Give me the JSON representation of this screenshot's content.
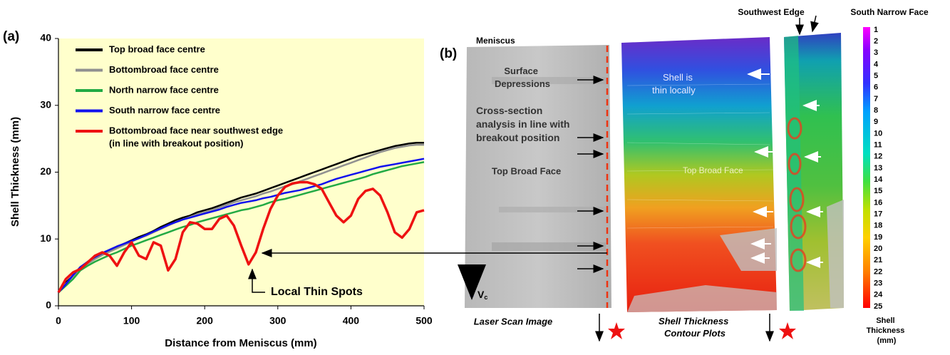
{
  "chart_data": {
    "type": "line",
    "panel_label": "(a)",
    "x_label": "Distance from Meniscus (mm)",
    "y_label": "Shell Thickness (mm)",
    "x": [
      0,
      10,
      20,
      30,
      40,
      50,
      60,
      70,
      80,
      90,
      100,
      110,
      120,
      130,
      140,
      150,
      160,
      170,
      180,
      190,
      200,
      210,
      220,
      230,
      240,
      250,
      260,
      270,
      280,
      290,
      300,
      310,
      320,
      330,
      340,
      350,
      360,
      370,
      380,
      390,
      400,
      410,
      420,
      430,
      440,
      450,
      460,
      470,
      480,
      490,
      500
    ],
    "series": [
      {
        "name": "Top broad face centre",
        "color": "#000000",
        "values": [
          2,
          3.5,
          4.5,
          5.8,
          6.5,
          7.2,
          7.8,
          8.3,
          8.8,
          9.3,
          9.8,
          10.3,
          10.7,
          11.2,
          11.8,
          12.3,
          12.8,
          13.2,
          13.5,
          14,
          14.3,
          14.6,
          15,
          15.4,
          15.8,
          16.2,
          16.5,
          16.8,
          17.2,
          17.6,
          18,
          18.4,
          18.8,
          19.2,
          19.6,
          20,
          20.4,
          20.8,
          21.2,
          21.6,
          22,
          22.4,
          22.7,
          23,
          23.3,
          23.6,
          23.9,
          24.1,
          24.3,
          24.4,
          24.4
        ]
      },
      {
        "name": "Bottombroad face centre",
        "color": "#909090",
        "values": [
          2,
          3.3,
          4.4,
          5.6,
          6.3,
          7,
          7.6,
          8.1,
          8.6,
          9.1,
          9.6,
          10.1,
          10.5,
          11,
          11.5,
          12,
          12.5,
          12.9,
          13.3,
          13.7,
          14,
          14.3,
          14.7,
          15.1,
          15.5,
          15.8,
          16.1,
          16.4,
          16.8,
          17.1,
          17.5,
          17.9,
          18.2,
          18.6,
          19,
          19.4,
          19.8,
          20.2,
          20.6,
          21,
          21.4,
          21.8,
          22.2,
          22.6,
          23,
          23.3,
          23.6,
          23.8,
          24,
          24.1,
          24.1
        ]
      },
      {
        "name": "North narrow face centre",
        "color": "#22aa44",
        "values": [
          2,
          3,
          4,
          5.3,
          6,
          6.6,
          7.1,
          7.6,
          8,
          8.5,
          9,
          9.4,
          9.8,
          10.2,
          10.6,
          11,
          11.4,
          11.8,
          12.1,
          12.5,
          12.8,
          13.1,
          13.4,
          13.7,
          14,
          14.3,
          14.5,
          14.8,
          15.1,
          15.5,
          15.8,
          16,
          16.3,
          16.6,
          16.9,
          17.2,
          17.5,
          17.8,
          18.1,
          18.4,
          18.7,
          19,
          19.3,
          19.7,
          20,
          20.3,
          20.6,
          20.9,
          21.1,
          21.3,
          21.5
        ]
      },
      {
        "name": "South narrow face centre",
        "color": "#1010ee",
        "values": [
          2,
          3.2,
          4.6,
          5.8,
          6.6,
          7.3,
          7.9,
          8.4,
          8.9,
          9.3,
          9.7,
          10.1,
          10.6,
          11.1,
          11.6,
          12.1,
          12.5,
          12.9,
          13.2,
          13.5,
          13.8,
          14.1,
          14.4,
          14.8,
          15.1,
          15.4,
          15.6,
          15.8,
          16.1,
          16.3,
          16.6,
          16.9,
          17.1,
          17.3,
          17.6,
          17.9,
          18.2,
          18.6,
          19,
          19.3,
          19.6,
          19.9,
          20.2,
          20.5,
          20.8,
          21,
          21.2,
          21.4,
          21.6,
          21.8,
          22
        ]
      },
      {
        "name": "Bottombroad face near southwest edge",
        "color": "#ee1111",
        "values": [
          2,
          4,
          5,
          5.5,
          6.5,
          7.5,
          8,
          7.5,
          6,
          8,
          9.5,
          7.5,
          7,
          9.5,
          9,
          5.3,
          7,
          11,
          12.5,
          12.3,
          11.5,
          11.5,
          13,
          13.5,
          12,
          9,
          6.2,
          8,
          11.5,
          14.5,
          16.5,
          17.8,
          18.3,
          18.5,
          18.5,
          18.2,
          17.5,
          15.5,
          13.5,
          12.5,
          13.5,
          16,
          17.2,
          17.5,
          16.5,
          14,
          11,
          10.2,
          11.5,
          14,
          14.3
        ]
      }
    ],
    "legend_note": "(in line with breakout position)",
    "legend": "upper left",
    "background": "#ffffcc",
    "annotation": "Local Thin Spots",
    "xlim": [
      0,
      500
    ],
    "xticks": [
      0,
      100,
      200,
      300,
      400,
      500
    ],
    "ylim": [
      0,
      40
    ],
    "yticks": [
      0,
      10,
      20,
      30,
      40
    ]
  },
  "figure_b": {
    "panel_label": "(b)",
    "meniscus": "Meniscus",
    "surface_depressions": [
      "Surface",
      "Depressions"
    ],
    "cross_section": [
      "Cross-section",
      "analysis in line with",
      "breakout position"
    ],
    "top_broad_face_scan": "Top Broad Face",
    "top_broad_face_contour": "Top Broad Face",
    "shell_thin": [
      "Shell is",
      "thin locally"
    ],
    "casting_direction": "V",
    "casting_direction_sub": "c",
    "laser_scan_caption": "Laser Scan Image",
    "contour_caption": [
      "Shell Thickness",
      "Contour Plots"
    ],
    "southwest_edge": "Southwest Edge",
    "south_narrow_face": "South Narrow Face",
    "colorbar": {
      "ticks": [
        1,
        2,
        3,
        4,
        5,
        6,
        7,
        8,
        9,
        10,
        11,
        12,
        13,
        14,
        15,
        16,
        17,
        18,
        19,
        20,
        21,
        22,
        23,
        24,
        25
      ],
      "title": [
        "Shell",
        "Thickness",
        "(mm)"
      ]
    }
  }
}
